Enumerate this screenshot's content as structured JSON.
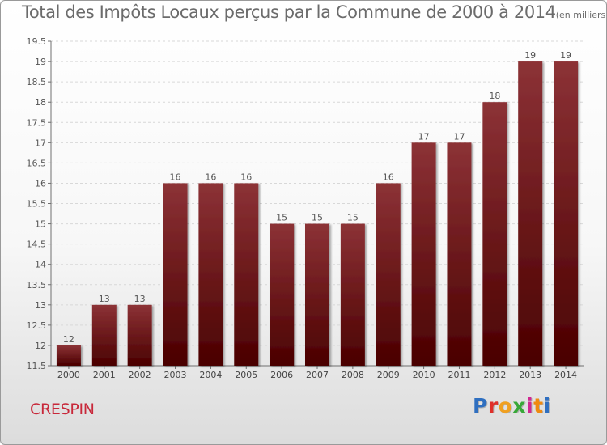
{
  "title": "Total des Impôts Locaux perçus par la Commune de 2000 à 2014",
  "unit": "(en milliers d'€)",
  "commune": "CRESPIN",
  "logo": {
    "text": "Proxiti",
    "letters": [
      "P",
      "r",
      "o",
      "x",
      "i",
      "t",
      "i"
    ]
  },
  "colors": {
    "bar_top": "#8c3236",
    "bar_bottom": "#4a0000",
    "title": "#6b6b6b",
    "commune": "#c8283a",
    "grid": "#d8d8d8",
    "axis": "#707070"
  },
  "chart_data": {
    "type": "bar",
    "title": "Total des Impôts Locaux perçus par la Commune de 2000 à 2014",
    "xlabel": "",
    "ylabel": "(en milliers d'€)",
    "categories": [
      "2000",
      "2001",
      "2002",
      "2003",
      "2004",
      "2005",
      "2006",
      "2007",
      "2008",
      "2009",
      "2010",
      "2011",
      "2012",
      "2013",
      "2014"
    ],
    "values": [
      12,
      13,
      13,
      16,
      16,
      16,
      15,
      15,
      15,
      16,
      17,
      17,
      18,
      19,
      19
    ],
    "labels": [
      "12",
      "13",
      "13",
      "16",
      "16",
      "16",
      "15",
      "15",
      "15",
      "16",
      "17",
      "17",
      "18",
      "19",
      "19"
    ],
    "ylim": [
      11.5,
      19.5
    ],
    "yticks": [
      11.5,
      12,
      12.5,
      13,
      13.5,
      14,
      14.5,
      15,
      15.5,
      16,
      16.5,
      17,
      17.5,
      18,
      18.5,
      19,
      19.5
    ],
    "ytick_labels": [
      "11.5",
      "12",
      "12.5",
      "13",
      "13.5",
      "14",
      "14.5",
      "15",
      "15.5",
      "16",
      "16.5",
      "17",
      "17.5",
      "18",
      "18.5",
      "19",
      "19.5"
    ],
    "grid": true,
    "legend": "none"
  }
}
